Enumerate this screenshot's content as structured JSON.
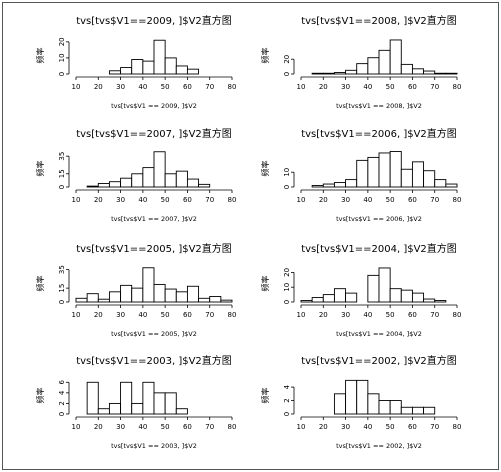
{
  "chart_data": [
    {
      "type": "bar",
      "title": "tvs[tvs$V1==2009, ]$V2直方图",
      "xlabel": "tvs[tvs$V1 == 2009, ]$V2",
      "ylabel": "频率",
      "xlim": [
        10,
        80
      ],
      "xticks": [
        10,
        20,
        30,
        40,
        50,
        60,
        70,
        80
      ],
      "ylim": [
        0,
        23
      ],
      "yticks": [
        0,
        10,
        20
      ],
      "bin_edges": [
        10,
        15,
        20,
        25,
        30,
        35,
        40,
        45,
        50,
        55,
        60,
        65,
        70,
        75,
        80
      ],
      "values": [
        0,
        0,
        0,
        2,
        4,
        9,
        8,
        21,
        10,
        5,
        3,
        0,
        0,
        0
      ],
      "grid": false,
      "legend": "none"
    },
    {
      "type": "bar",
      "title": "tvs[tvs$V1==2008, ]$V2直方图",
      "xlabel": "tvs[tvs$V1 == 2008, ]$V2",
      "ylabel": "频率",
      "xlim": [
        10,
        80
      ],
      "xticks": [
        10,
        20,
        30,
        40,
        50,
        60,
        70,
        80
      ],
      "ylim": [
        0,
        50
      ],
      "yticks": [
        0,
        20
      ],
      "bin_edges": [
        10,
        15,
        20,
        25,
        30,
        35,
        40,
        45,
        50,
        55,
        60,
        65,
        70,
        75,
        80
      ],
      "values": [
        0,
        1,
        1,
        2,
        5,
        14,
        22,
        32,
        46,
        13,
        7,
        4,
        1,
        1
      ],
      "grid": false,
      "legend": "none"
    },
    {
      "type": "bar",
      "title": "tvs[tvs$V1==2007, ]$V2直方图",
      "xlabel": "tvs[tvs$V1 == 2007, ]$V2",
      "ylabel": "频率",
      "xlim": [
        10,
        80
      ],
      "xticks": [
        10,
        20,
        30,
        40,
        50,
        60,
        70,
        80
      ],
      "ylim": [
        0,
        42
      ],
      "yticks": [
        0,
        15,
        35
      ],
      "bin_edges": [
        10,
        15,
        20,
        25,
        30,
        35,
        40,
        45,
        50,
        55,
        60,
        65,
        70,
        75,
        80
      ],
      "values": [
        0,
        1,
        4,
        6,
        10,
        15,
        22,
        40,
        15,
        18,
        9,
        3,
        0,
        0
      ],
      "grid": false,
      "legend": "none"
    },
    {
      "type": "bar",
      "title": "tvs[tvs$V1==2006, ]$V2直方图",
      "xlabel": "tvs[tvs$V1 == 2006, ]$V2",
      "ylabel": "频率",
      "xlim": [
        10,
        80
      ],
      "xticks": [
        10,
        20,
        30,
        40,
        50,
        60,
        70,
        80
      ],
      "ylim": [
        0,
        25
      ],
      "yticks": [
        0,
        10
      ],
      "bin_edges": [
        10,
        15,
        20,
        25,
        30,
        35,
        40,
        45,
        50,
        55,
        60,
        65,
        70,
        75,
        80
      ],
      "values": [
        0,
        1,
        2,
        3,
        5,
        18,
        20,
        23,
        24,
        12,
        17,
        11,
        5,
        2
      ],
      "grid": false,
      "legend": "none"
    },
    {
      "type": "bar",
      "title": "tvs[tvs$V1==2005, ]$V2直方图",
      "xlabel": "tvs[tvs$V1 == 2005, ]$V2",
      "ylabel": "频率",
      "xlim": [
        10,
        80
      ],
      "xticks": [
        10,
        20,
        30,
        40,
        50,
        60,
        70,
        80
      ],
      "ylim": [
        0,
        40
      ],
      "yticks": [
        0,
        15,
        35
      ],
      "bin_edges": [
        10,
        15,
        20,
        25,
        30,
        35,
        40,
        45,
        50,
        55,
        60,
        65,
        70,
        75,
        80
      ],
      "values": [
        4,
        9,
        3,
        11,
        18,
        15,
        37,
        19,
        14,
        11,
        17,
        4,
        6,
        2
      ],
      "grid": false,
      "legend": "none"
    },
    {
      "type": "bar",
      "title": "tvs[tvs$V1==2004, ]$V2直方图",
      "xlabel": "tvs[tvs$V1 == 2004, ]$V2",
      "ylabel": "频率",
      "xlim": [
        10,
        80
      ],
      "xticks": [
        10,
        20,
        30,
        40,
        50,
        60,
        70,
        80
      ],
      "ylim": [
        0,
        25
      ],
      "yticks": [
        0,
        10,
        20
      ],
      "bin_edges": [
        10,
        15,
        20,
        25,
        30,
        35,
        40,
        45,
        50,
        55,
        60,
        65,
        70,
        75,
        80
      ],
      "values": [
        1,
        3,
        5,
        9,
        6,
        0,
        18,
        23,
        9,
        8,
        6,
        2,
        1,
        0
      ],
      "grid": false,
      "legend": "none"
    },
    {
      "type": "bar",
      "title": "tvs[tvs$V1==2003, ]$V2直方图",
      "xlabel": "tvs[tvs$V1 == 2003, ]$V2",
      "ylabel": "频率",
      "xlim": [
        10,
        80
      ],
      "xticks": [
        10,
        20,
        30,
        40,
        50,
        60,
        70,
        80
      ],
      "ylim": [
        0,
        7
      ],
      "yticks": [
        0,
        2,
        4,
        6
      ],
      "bin_edges": [
        10,
        15,
        20,
        25,
        30,
        35,
        40,
        45,
        50,
        55,
        60,
        65,
        70,
        75,
        80
      ],
      "values": [
        0,
        6,
        1,
        2,
        6,
        2,
        6,
        4,
        4,
        1,
        0,
        0,
        0,
        0
      ],
      "grid": false,
      "legend": "none"
    },
    {
      "type": "bar",
      "title": "tvs[tvs$V1==2002, ]$V2直方图",
      "xlabel": "tvs[tvs$V1 == 2002, ]$V2",
      "ylabel": "频率",
      "xlim": [
        10,
        80
      ],
      "xticks": [
        10,
        20,
        30,
        40,
        50,
        60,
        70,
        80
      ],
      "ylim": [
        0,
        5.5
      ],
      "yticks": [
        0,
        2,
        4
      ],
      "bin_edges": [
        10,
        15,
        20,
        25,
        30,
        35,
        40,
        45,
        50,
        55,
        60,
        65,
        70,
        75,
        80
      ],
      "values": [
        0,
        0,
        0,
        3,
        5,
        5,
        3,
        2,
        2,
        1,
        1,
        1,
        0,
        0
      ],
      "grid": false,
      "legend": "none"
    }
  ]
}
